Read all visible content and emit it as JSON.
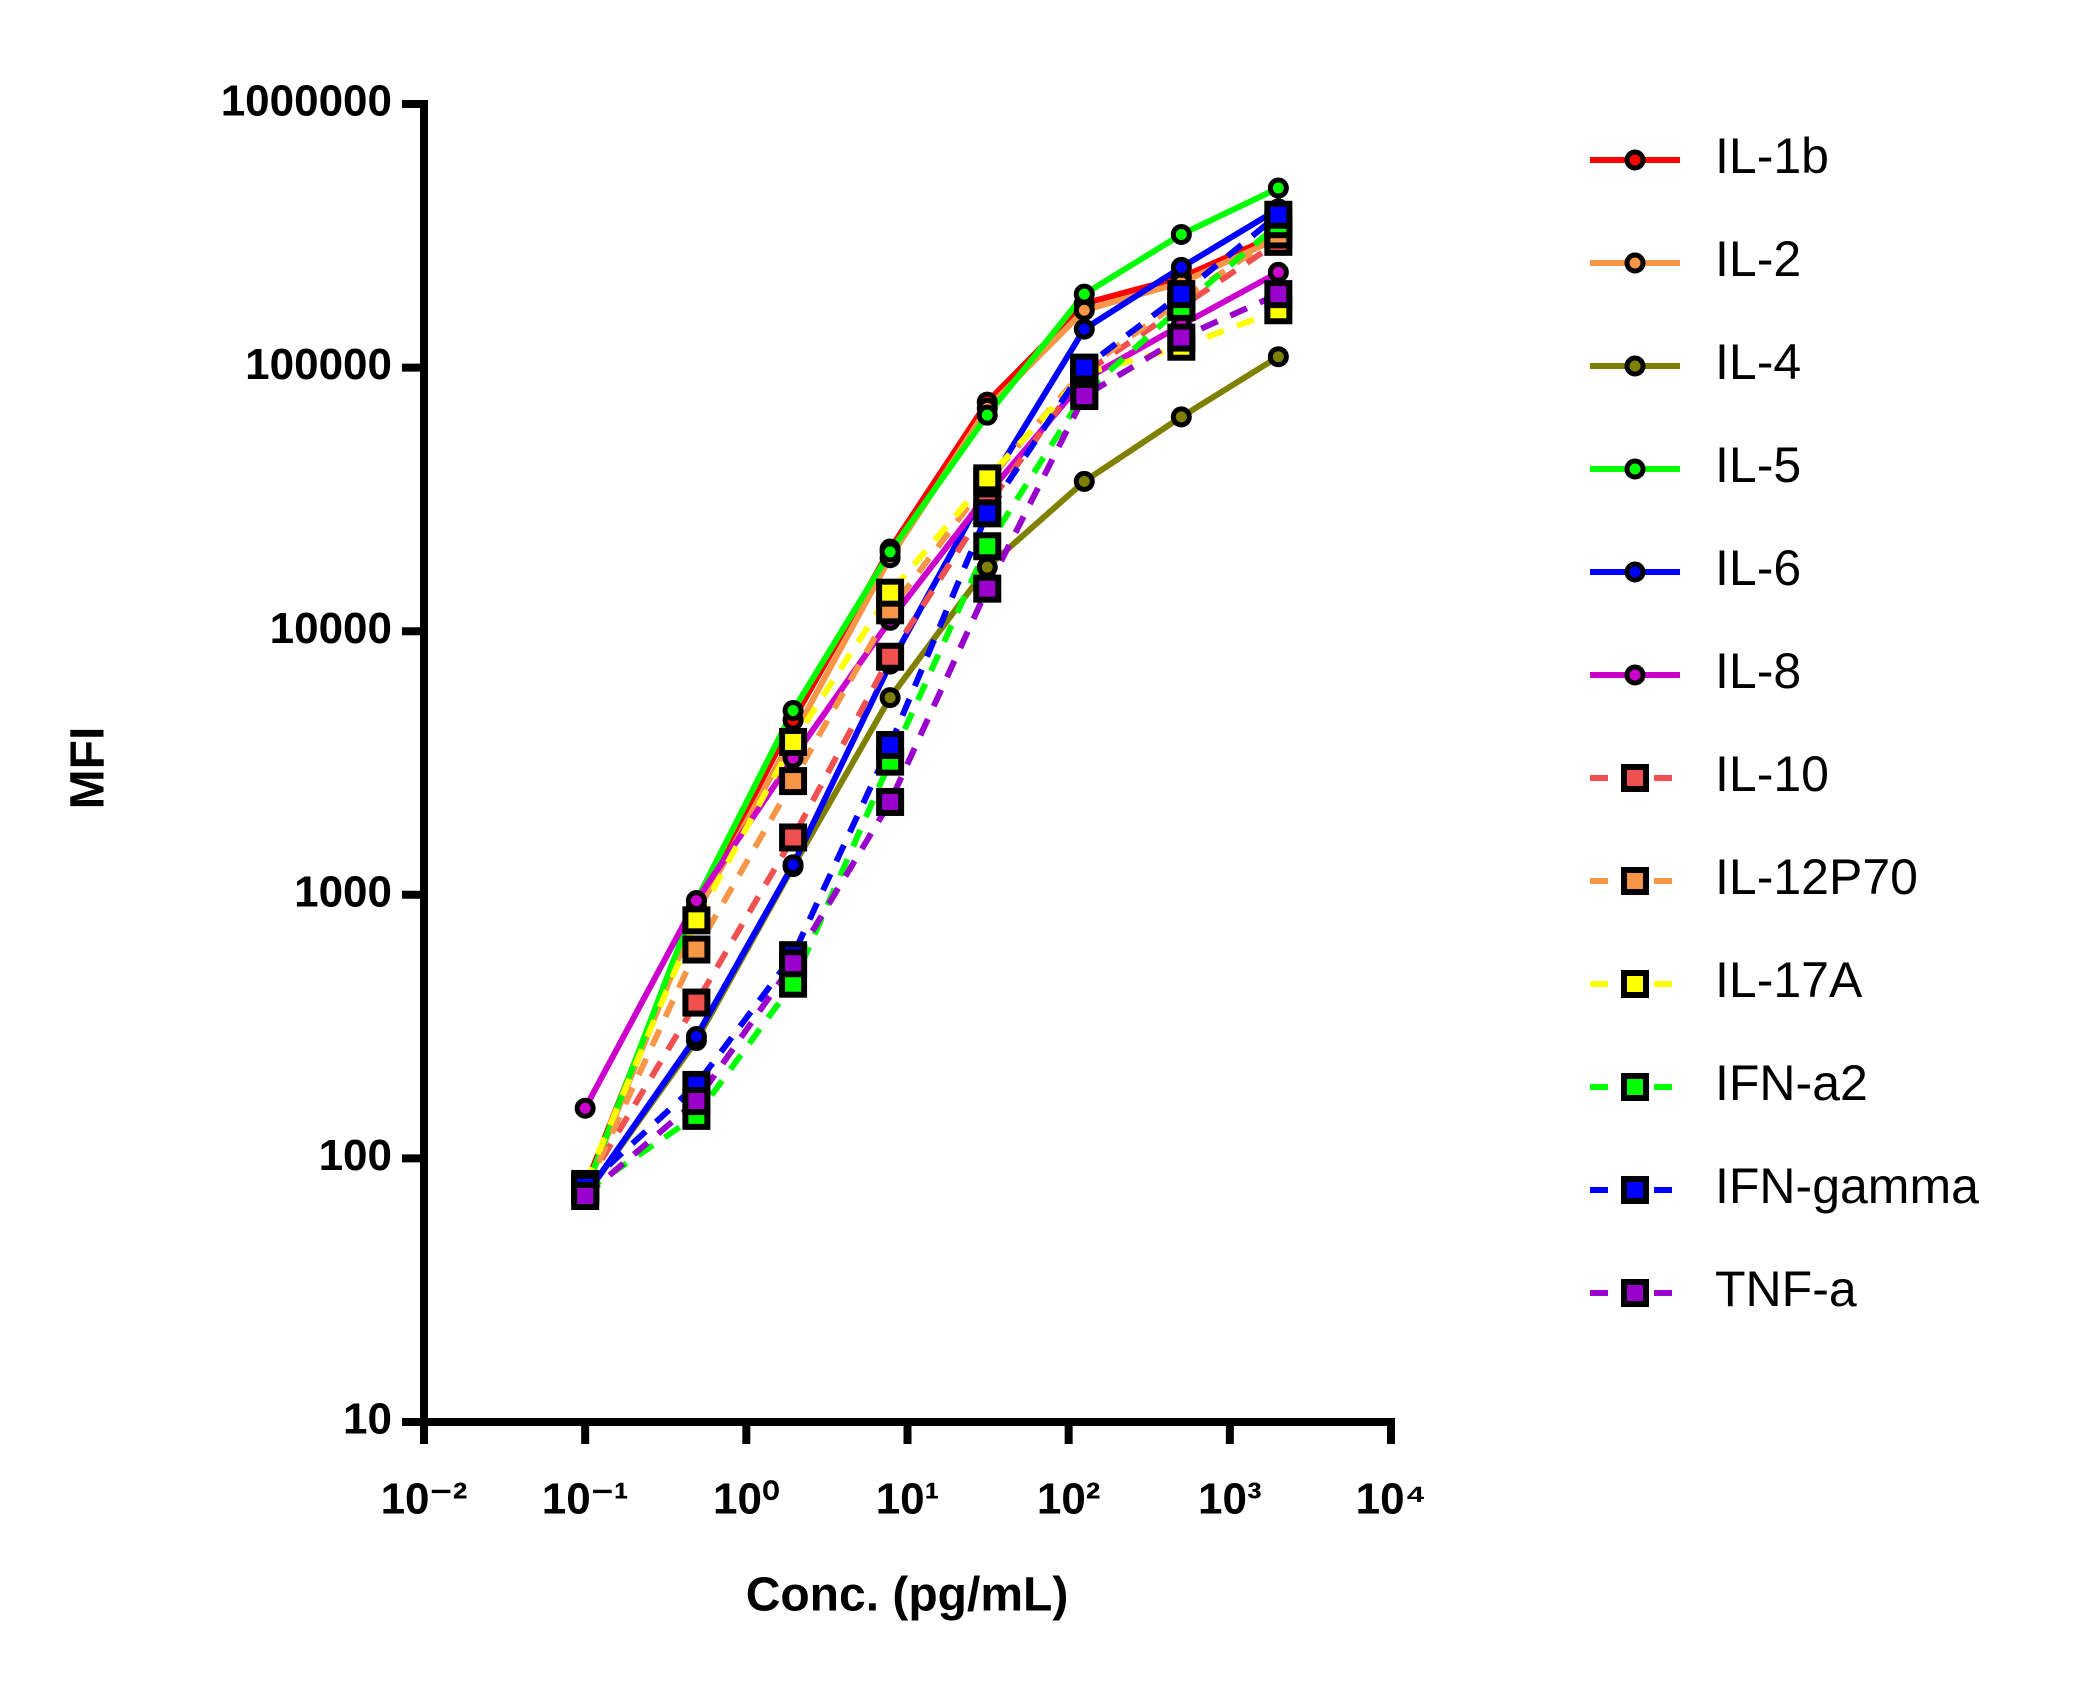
{
  "chart_data": {
    "type": "line",
    "x_label": "Conc. (pg/mL)",
    "y_label": "MFI",
    "x_scale": "log",
    "y_scale": "log",
    "x": [
      0.1,
      0.49,
      1.95,
      7.8,
      31.25,
      125,
      500,
      2000
    ],
    "xlim": [
      0.01,
      10000
    ],
    "xticks": [
      {
        "value": 0.01,
        "label": "10⁻²"
      },
      {
        "value": 0.1,
        "label": "10⁻¹"
      },
      {
        "value": 1,
        "label": "10⁰"
      },
      {
        "value": 10,
        "label": "10¹"
      },
      {
        "value": 100,
        "label": "10²"
      },
      {
        "value": 1000,
        "label": "10³"
      },
      {
        "value": 10000,
        "label": "10⁴"
      }
    ],
    "ylim": [
      10,
      1000000
    ],
    "yticks": [
      10,
      100,
      1000,
      10000,
      100000,
      1000000
    ],
    "legend_position": "right",
    "series": [
      {
        "name": "IL-1b",
        "color": "#ff0000",
        "marker": "circle",
        "dashed": false,
        "values": [
          78,
          900,
          4600,
          20500,
          74000,
          175000,
          220000,
          320000
        ]
      },
      {
        "name": "IL-2",
        "color": "#f79646",
        "marker": "circle",
        "dashed": false,
        "values": [
          75,
          850,
          4000,
          19000,
          70000,
          165000,
          210000,
          310000
        ]
      },
      {
        "name": "IL-4",
        "color": "#808000",
        "marker": "circle",
        "dashed": false,
        "values": [
          72,
          280,
          1280,
          5600,
          17500,
          37000,
          65000,
          110000
        ]
      },
      {
        "name": "IL-5",
        "color": "#00ff00",
        "marker": "circle",
        "dashed": false,
        "values": [
          75,
          950,
          5000,
          20000,
          66000,
          190000,
          320000,
          480000
        ]
      },
      {
        "name": "IL-6",
        "color": "#0000ff",
        "marker": "circle",
        "dashed": false,
        "values": [
          72,
          290,
          1300,
          7500,
          35000,
          140000,
          240000,
          400000
        ]
      },
      {
        "name": "IL-8",
        "color": "#cc00cc",
        "marker": "circle",
        "dashed": false,
        "values": [
          155,
          950,
          3300,
          11000,
          33000,
          90000,
          145000,
          230000
        ]
      },
      {
        "name": "IL-10",
        "color": "#f05050",
        "marker": "square",
        "dashed": true,
        "values": [
          78,
          390,
          1650,
          8000,
          30000,
          95000,
          170000,
          300000
        ]
      },
      {
        "name": "IL-12P70",
        "color": "#f79646",
        "marker": "square",
        "dashed": true,
        "values": [
          75,
          620,
          2700,
          12000,
          37000,
          98000,
          180000,
          320000
        ]
      },
      {
        "name": "IL-17A",
        "color": "#ffff00",
        "marker": "square",
        "dashed": true,
        "values": [
          80,
          800,
          3800,
          14000,
          38000,
          95000,
          120000,
          165000
        ]
      },
      {
        "name": "IFN-a2",
        "color": "#00ff00",
        "marker": "square",
        "dashed": true,
        "values": [
          75,
          145,
          460,
          3200,
          21000,
          80000,
          170000,
          350000
        ]
      },
      {
        "name": "IFN-gamma",
        "color": "#0000ff",
        "marker": "square",
        "dashed": true,
        "values": [
          78,
          190,
          590,
          3700,
          28000,
          100000,
          190000,
          380000
        ]
      },
      {
        "name": "TNF-a",
        "color": "#9900cc",
        "marker": "square",
        "dashed": true,
        "values": [
          72,
          165,
          550,
          2250,
          14500,
          78000,
          130000,
          190000
        ]
      }
    ]
  }
}
